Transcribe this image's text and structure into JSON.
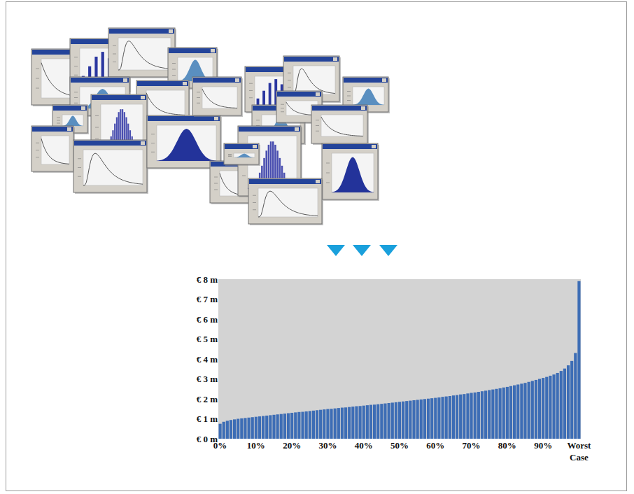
{
  "chart_data": {
    "type": "bar",
    "categories": [
      "0%",
      null,
      null,
      null,
      null,
      null,
      null,
      null,
      null,
      null,
      "10%",
      null,
      null,
      null,
      null,
      null,
      null,
      null,
      null,
      null,
      "20%",
      null,
      null,
      null,
      null,
      null,
      null,
      null,
      null,
      null,
      "30%",
      null,
      null,
      null,
      null,
      null,
      null,
      null,
      null,
      null,
      "40%",
      null,
      null,
      null,
      null,
      null,
      null,
      null,
      null,
      null,
      "50%",
      null,
      null,
      null,
      null,
      null,
      null,
      null,
      null,
      null,
      "60%",
      null,
      null,
      null,
      null,
      null,
      null,
      null,
      null,
      null,
      "70%",
      null,
      null,
      null,
      null,
      null,
      null,
      null,
      null,
      null,
      "80%",
      null,
      null,
      null,
      null,
      null,
      null,
      null,
      null,
      null,
      "90%",
      null,
      null,
      null,
      null,
      null,
      null,
      null,
      null,
      null,
      "Worst Case"
    ],
    "values": [
      0.75,
      0.85,
      0.9,
      0.94,
      0.97,
      1.0,
      1.02,
      1.04,
      1.06,
      1.08,
      1.1,
      1.12,
      1.14,
      1.16,
      1.18,
      1.2,
      1.22,
      1.24,
      1.26,
      1.28,
      1.3,
      1.32,
      1.34,
      1.35,
      1.37,
      1.39,
      1.41,
      1.43,
      1.45,
      1.47,
      1.49,
      1.5,
      1.52,
      1.54,
      1.56,
      1.57,
      1.59,
      1.61,
      1.63,
      1.64,
      1.66,
      1.68,
      1.7,
      1.71,
      1.73,
      1.75,
      1.77,
      1.79,
      1.81,
      1.83,
      1.85,
      1.87,
      1.89,
      1.91,
      1.93,
      1.95,
      1.97,
      1.99,
      2.01,
      2.03,
      2.05,
      2.07,
      2.1,
      2.12,
      2.14,
      2.17,
      2.19,
      2.22,
      2.24,
      2.27,
      2.3,
      2.32,
      2.35,
      2.38,
      2.41,
      2.44,
      2.47,
      2.5,
      2.53,
      2.57,
      2.6,
      2.64,
      2.68,
      2.72,
      2.76,
      2.8,
      2.85,
      2.9,
      2.95,
      3.0,
      3.05,
      3.1,
      3.16,
      3.22,
      3.3,
      3.4,
      3.52,
      3.68,
      3.9,
      4.3,
      7.9
    ],
    "color": "#3d6db5",
    "ylim": [
      0,
      8
    ],
    "yticks": [
      {
        "value": 0,
        "label": "€ 0 m"
      },
      {
        "value": 1,
        "label": "€ 1 m"
      },
      {
        "value": 2,
        "label": "€ 2 m"
      },
      {
        "value": 3,
        "label": "€ 3 m"
      },
      {
        "value": 4,
        "label": "€ 4 m"
      },
      {
        "value": 5,
        "label": "€ 5 m"
      },
      {
        "value": 6,
        "label": "€ 6 m"
      },
      {
        "value": 7,
        "label": "€ 7 m"
      },
      {
        "value": 8,
        "label": "€ 8 m"
      }
    ],
    "grid": false
  }
}
